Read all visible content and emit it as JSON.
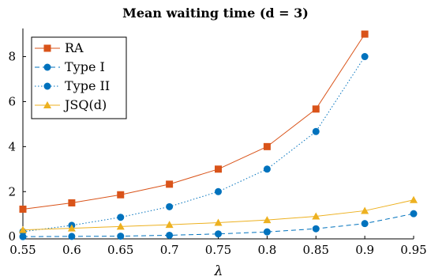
{
  "chart_data": {
    "type": "line",
    "title": "Mean waiting time (d = 3)",
    "xlabel": "λ",
    "ylabel": "",
    "x": [
      0.55,
      0.6,
      0.65,
      0.7,
      0.75,
      0.8,
      0.85,
      0.9,
      0.95
    ],
    "xticks": [
      "0.55",
      "0.6",
      "0.65",
      "0.7",
      "0.75",
      "0.8",
      "0.85",
      "0.9",
      "0.95"
    ],
    "yticks": [
      "0",
      "2",
      "4",
      "6",
      "8"
    ],
    "xlim": [
      0.55,
      0.95
    ],
    "ylim": [
      -0.1,
      9.25
    ],
    "grid": false,
    "legend_position": "top-left",
    "series": [
      {
        "name": "RA",
        "legend_label": "RA",
        "color": "#d95319",
        "line": "solid",
        "marker": "square",
        "x": [
          0.55,
          0.6,
          0.65,
          0.7,
          0.75,
          0.8,
          0.85,
          0.9
        ],
        "values": [
          1.22,
          1.5,
          1.86,
          2.33,
          3.0,
          4.0,
          5.67,
          9.0
        ]
      },
      {
        "name": "Type I",
        "legend_label": "Type I",
        "color": "#0072bd",
        "line": "dashed",
        "marker": "circle",
        "x": [
          0.55,
          0.6,
          0.65,
          0.7,
          0.75,
          0.8,
          0.85,
          0.9,
          0.95
        ],
        "values": [
          0.0,
          0.01,
          0.02,
          0.06,
          0.12,
          0.21,
          0.35,
          0.58,
          1.02
        ]
      },
      {
        "name": "Type II",
        "legend_label": "Type II",
        "color": "#0072bd",
        "line": "dotted",
        "marker": "circle",
        "x": [
          0.55,
          0.6,
          0.65,
          0.7,
          0.75,
          0.8,
          0.85,
          0.9
        ],
        "values": [
          0.22,
          0.5,
          0.86,
          1.33,
          2.0,
          3.0,
          4.67,
          8.0
        ]
      },
      {
        "name": "JSQ(d)",
        "legend_label": "JSQ(d)",
        "color": "#edb120",
        "line": "solid",
        "marker": "triangle",
        "x": [
          0.55,
          0.6,
          0.65,
          0.7,
          0.75,
          0.8,
          0.85,
          0.9,
          0.95
        ],
        "values": [
          0.3,
          0.37,
          0.45,
          0.53,
          0.62,
          0.74,
          0.9,
          1.15,
          1.63
        ]
      }
    ]
  }
}
